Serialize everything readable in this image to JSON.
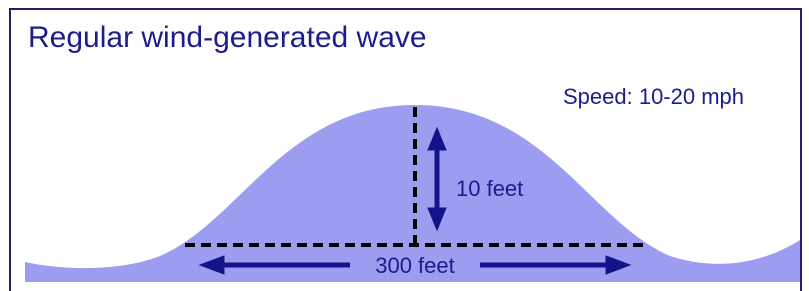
{
  "title": "Regular wind-generated wave",
  "speed_label": "Speed: 10-20 mph",
  "height_label": "10 feet",
  "length_label": "300 feet"
}
